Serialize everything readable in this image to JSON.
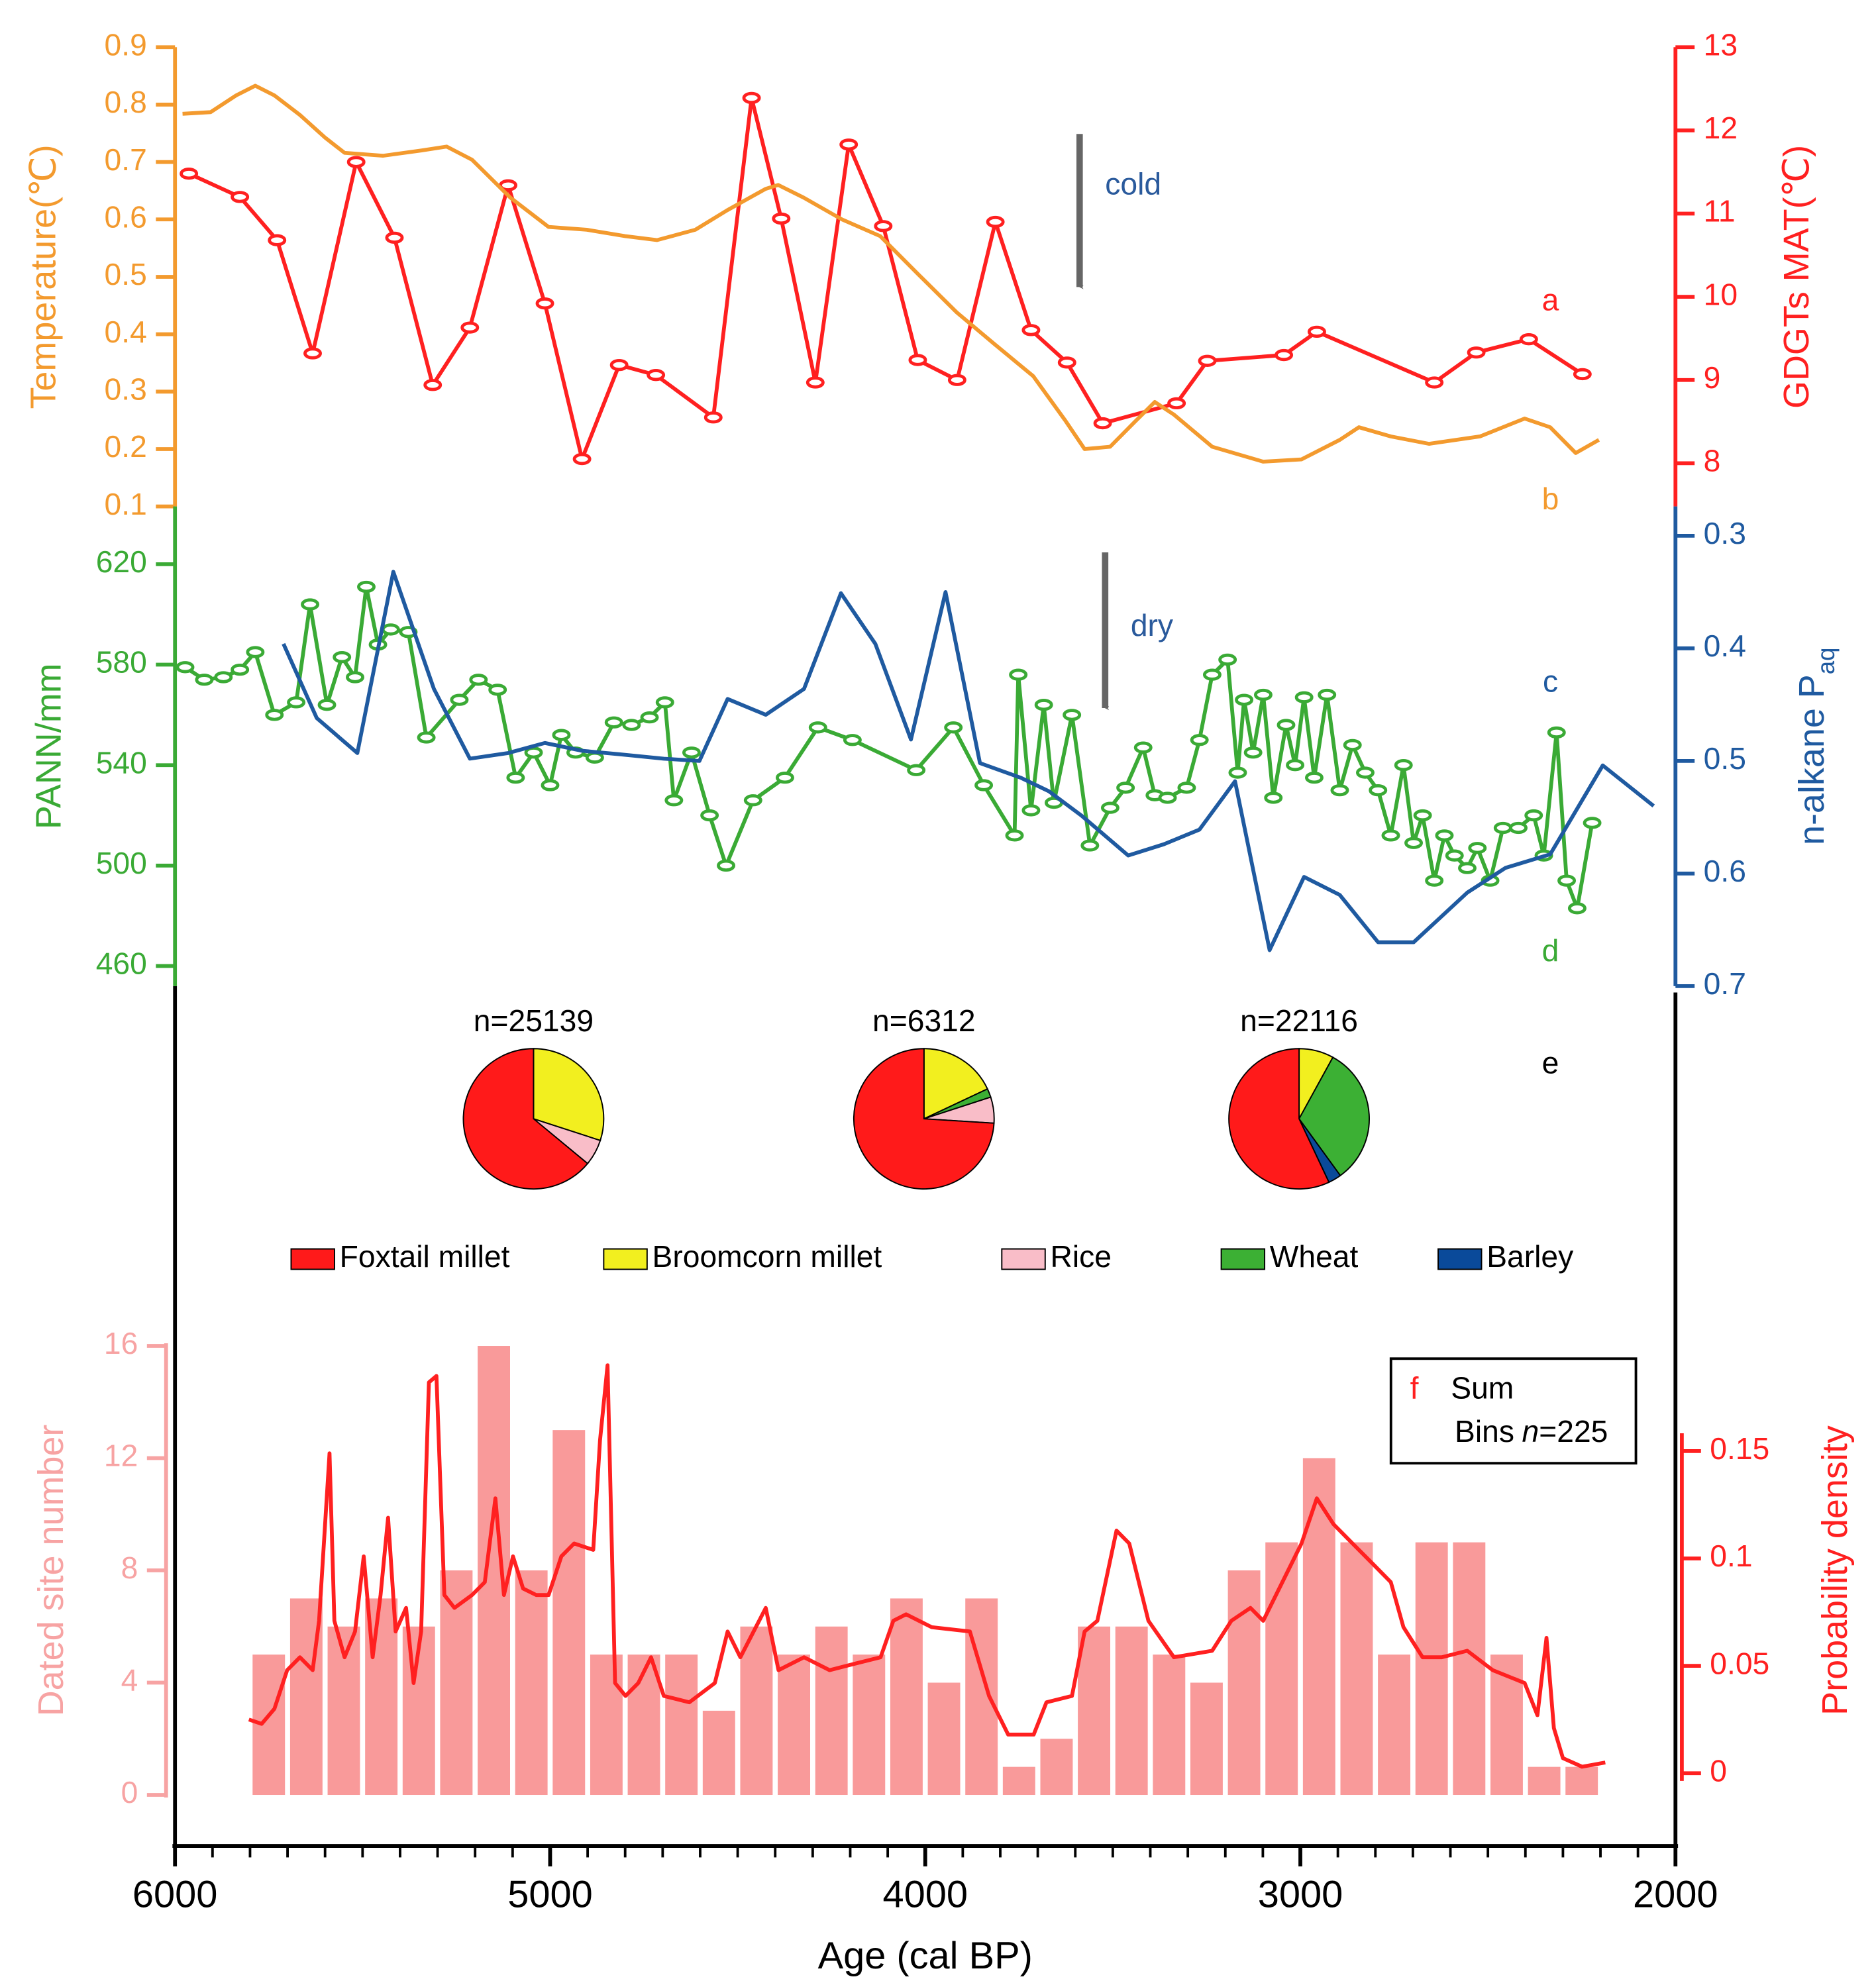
{
  "chart_data": [
    {
      "type": "line",
      "xlim": [
        6000,
        2000
      ],
      "ylabel": "Temperature(℃)",
      "ylim": [
        0.1,
        0.9
      ],
      "yticks": [
        0.1,
        0.2,
        0.3,
        0.4,
        0.5,
        0.6,
        0.7,
        0.8,
        0.9
      ],
      "ycolor": "#f39a2e",
      "y2label": "GDGTs MAT(℃)",
      "y2lim": [
        7.48,
        13
      ],
      "y2ticks": [
        8,
        9,
        10,
        11,
        12,
        13
      ],
      "y2color": "#ff2020",
      "annotation": "cold",
      "series": [
        {
          "label": "a",
          "color": "#ff2020",
          "axis": "y2",
          "markers": true,
          "x": [
            5963,
            5827,
            5728,
            5633,
            5517,
            5415,
            5313,
            5214,
            5112,
            5014,
            4915,
            4816,
            4718,
            4565,
            4463,
            4384,
            4293,
            4204,
            4112,
            4020,
            3915,
            3813,
            3718,
            3622,
            3527,
            3330,
            3248,
            3044,
            2956,
            2643,
            2531,
            2391,
            2248
          ],
          "values": [
            11.48,
            11.2,
            10.68,
            9.32,
            11.62,
            10.71,
            8.94,
            9.63,
            11.34,
            9.92,
            8.05,
            9.18,
            9.06,
            8.55,
            12.39,
            10.94,
            8.97,
            11.83,
            10.85,
            9.24,
            9.0,
            10.9,
            9.6,
            9.21,
            8.48,
            8.72,
            9.23,
            9.3,
            9.58,
            8.97,
            9.33,
            9.49,
            9.07
          ]
        },
        {
          "label": "b",
          "color": "#f39a2e",
          "axis": "y",
          "markers": false,
          "x": [
            5980,
            5905,
            5837,
            5786,
            5735,
            5667,
            5599,
            5548,
            5446,
            5344,
            5276,
            5208,
            5106,
            5004,
            4902,
            4800,
            4715,
            4613,
            4528,
            4426,
            4392,
            4324,
            4222,
            4120,
            4018,
            3916,
            3814,
            3712,
            3626,
            3575,
            3507,
            3439,
            3388,
            3337,
            3235,
            3099,
            2997,
            2895,
            2844,
            2759,
            2657,
            2521,
            2402,
            2334,
            2266,
            2204
          ],
          "values": [
            0.784,
            0.787,
            0.816,
            0.833,
            0.816,
            0.782,
            0.742,
            0.716,
            0.711,
            0.72,
            0.727,
            0.704,
            0.638,
            0.587,
            0.582,
            0.571,
            0.564,
            0.582,
            0.616,
            0.653,
            0.66,
            0.638,
            0.6,
            0.571,
            0.504,
            0.438,
            0.382,
            0.327,
            0.249,
            0.2,
            0.204,
            0.249,
            0.282,
            0.26,
            0.204,
            0.178,
            0.182,
            0.216,
            0.238,
            0.222,
            0.209,
            0.222,
            0.253,
            0.238,
            0.193,
            0.216
          ]
        }
      ]
    },
    {
      "type": "line",
      "xlim": [
        6000,
        2000
      ],
      "ylabel": "PANN/mm",
      "ylim": [
        452,
        643
      ],
      "yticks": [
        460,
        500,
        540,
        580,
        620
      ],
      "ycolor": "#3aaa35",
      "y2label": "n-alkane P",
      "y2label_sub": "aq",
      "y2lim": [
        0.7,
        0.274
      ],
      "y2ticks": [
        0.3,
        0.4,
        0.5,
        0.6,
        0.7
      ],
      "y2color": "#1f5aa0",
      "annotation": "dry",
      "series": [
        {
          "label": "d",
          "color": "#3aaa35",
          "axis": "y",
          "markers": true,
          "x": [
            5973,
            5922,
            5871,
            5827,
            5786,
            5735,
            5677,
            5640,
            5595,
            5555,
            5520,
            5490,
            5459,
            5425,
            5378,
            5330,
            5242,
            5191,
            5140,
            5092,
            5044,
            5000,
            4970,
            4932,
            4881,
            4830,
            4783,
            4735,
            4694,
            4670,
            4623,
            4575,
            4531,
            4459,
            4374,
            4286,
            4194,
            4024,
            3925,
            3844,
            3762,
            3752,
            3718,
            3684,
            3657,
            3609,
            3561,
            3507,
            3466,
            3419,
            3388,
            3354,
            3303,
            3269,
            3235,
            3194,
            3167,
            3150,
            3126,
            3099,
            3072,
            3038,
            3014,
            2990,
            2963,
            2929,
            2895,
            2861,
            2827,
            2793,
            2759,
            2725,
            2698,
            2674,
            2643,
            2616,
            2589,
            2555,
            2528,
            2494,
            2460,
            2419,
            2378,
            2351,
            2317,
            2290,
            2262,
            2222
          ],
          "values": [
            579,
            574,
            575,
            578,
            585,
            560,
            565,
            604,
            564,
            583,
            575,
            611,
            588,
            594,
            593,
            551,
            566,
            574,
            570,
            535,
            545,
            532,
            552,
            545,
            543,
            557,
            556,
            559,
            565,
            526,
            545,
            520,
            500,
            526,
            535,
            555,
            550,
            538,
            555,
            532,
            512,
            576,
            522,
            564,
            525,
            560,
            508,
            523,
            531,
            547,
            528,
            527,
            531,
            550,
            576,
            582,
            537,
            566,
            545,
            568,
            527,
            556,
            540,
            567,
            535,
            568,
            530,
            548,
            537,
            530,
            512,
            540,
            509,
            520,
            494,
            512,
            504,
            499,
            507,
            494,
            515,
            515,
            520,
            504,
            553,
            494,
            483,
            517
          ]
        },
        {
          "label": "c",
          "color": "#1f5aa0",
          "axis": "y2",
          "markers": false,
          "x": [
            5711,
            5622,
            5514,
            5418,
            5310,
            5214,
            5112,
            5014,
            4915,
            4816,
            4697,
            4602,
            4527,
            4425,
            4323,
            4225,
            4133,
            4038,
            3946,
            3854,
            3745,
            3670,
            3582,
            3459,
            3364,
            3269,
            3174,
            3082,
            2990,
            2895,
            2793,
            2698,
            2555,
            2453,
            2334,
            2194,
            2058
          ],
          "values": [
            0.396,
            0.462,
            0.493,
            0.332,
            0.436,
            0.498,
            0.493,
            0.484,
            0.491,
            0.494,
            0.498,
            0.5,
            0.445,
            0.459,
            0.436,
            0.351,
            0.396,
            0.481,
            0.35,
            0.502,
            0.515,
            0.527,
            0.549,
            0.584,
            0.574,
            0.561,
            0.518,
            0.668,
            0.603,
            0.619,
            0.661,
            0.661,
            0.617,
            0.595,
            0.583,
            0.504,
            0.54
          ]
        }
      ]
    },
    {
      "type": "pie",
      "label": "e",
      "categories": [
        "Foxtail millet",
        "Broomcorn millet",
        "Rice",
        "Wheat",
        "Barley"
      ],
      "colors": [
        "#ff1a1a",
        "#f2ef1f",
        "#f9bdc8",
        "#3cb034",
        "#0a4a9a"
      ],
      "pies": [
        {
          "label": "n=25139",
          "values": [
            64,
            30,
            6,
            0,
            0
          ]
        },
        {
          "label": "n=6312",
          "values": [
            74,
            18,
            6,
            2,
            0
          ]
        },
        {
          "label": "n=22116",
          "values": [
            57,
            8,
            0,
            32,
            3
          ]
        }
      ]
    },
    {
      "type": "histogram",
      "xlim": [
        6000,
        2000
      ],
      "xticks": [
        6000,
        5000,
        4000,
        3000,
        2000
      ],
      "xminorticks": [
        5900,
        5800,
        5700,
        5600,
        5500,
        5400,
        5300,
        5200,
        5100,
        4900,
        4800,
        4700,
        4600,
        4500,
        4400,
        4300,
        4200,
        4100,
        3900,
        3800,
        3700,
        3600,
        3500,
        3400,
        3300,
        3200,
        3100,
        2900,
        2800,
        2700,
        2600,
        2500,
        2400,
        2300,
        2200,
        2100
      ],
      "xlabel": "Age (cal BP)",
      "ylabel": "Dated site number",
      "ylim": [
        0,
        16
      ],
      "yticks": [
        0,
        4,
        8,
        12,
        16
      ],
      "ycolor": "#f7a3a3",
      "y2label": "Probability density",
      "y2lim": [
        -0.0101,
        0.199
      ],
      "y2ticks": [
        0,
        0.05,
        0.1,
        0.15
      ],
      "y2color": "#ff2020",
      "bar_color": "#f99a9a",
      "bins": [
        5800,
        5700,
        5600,
        5500,
        5400,
        5300,
        5200,
        5100,
        5000,
        4900,
        4800,
        4700,
        4600,
        4500,
        4400,
        4300,
        4200,
        4100,
        4000,
        3900,
        3800,
        3700,
        3600,
        3500,
        3400,
        3300,
        3200,
        3100,
        3000,
        2900,
        2800,
        2700,
        2600,
        2500,
        2400,
        2300,
        2200
      ],
      "counts": [
        5,
        7,
        6,
        7,
        6,
        8,
        16,
        8,
        13,
        5,
        5,
        5,
        3,
        6,
        5,
        6,
        5,
        7,
        4,
        7,
        1,
        2,
        6,
        6,
        5,
        4,
        8,
        9,
        12,
        9,
        5,
        9,
        9,
        5,
        1,
        1
      ],
      "panel_label": "f",
      "bins_note": [
        "Bins",
        "n",
        "=225"
      ],
      "series": [
        {
          "name": "Sum",
          "color": "#ff2020",
          "axis": "y2",
          "x": [
            5803,
            5769,
            5735,
            5701,
            5667,
            5633,
            5616,
            5588,
            5575,
            5548,
            5520,
            5497,
            5473,
            5452,
            5432,
            5412,
            5384,
            5364,
            5344,
            5323,
            5303,
            5282,
            5255,
            5208,
            5174,
            5146,
            5123,
            5099,
            5072,
            5037,
            5004,
            4970,
            4936,
            4885,
            4867,
            4847,
            4827,
            4799,
            4765,
            4731,
            4697,
            4629,
            4561,
            4527,
            4493,
            4425,
            4391,
            4323,
            4255,
            4187,
            4119,
            4085,
            4051,
            3983,
            3881,
            3830,
            3779,
            3711,
            3677,
            3609,
            3575,
            3541,
            3490,
            3456,
            3405,
            3337,
            3235,
            3184,
            3133,
            3099,
            3031,
            2997,
            2956,
            2912,
            2861,
            2810,
            2759,
            2725,
            2674,
            2623,
            2555,
            2487,
            2402,
            2368,
            2344,
            2324,
            2300,
            2249,
            2187
          ],
          "values": [
            0.025,
            0.023,
            0.03,
            0.048,
            0.054,
            0.048,
            0.071,
            0.149,
            0.071,
            0.054,
            0.066,
            0.101,
            0.054,
            0.083,
            0.119,
            0.066,
            0.077,
            0.042,
            0.066,
            0.182,
            0.185,
            0.083,
            0.077,
            0.083,
            0.089,
            0.128,
            0.083,
            0.101,
            0.086,
            0.083,
            0.083,
            0.101,
            0.107,
            0.104,
            0.155,
            0.19,
            0.042,
            0.036,
            0.042,
            0.054,
            0.036,
            0.033,
            0.042,
            0.066,
            0.054,
            0.077,
            0.048,
            0.054,
            0.048,
            0.051,
            0.054,
            0.071,
            0.074,
            0.068,
            0.066,
            0.036,
            0.018,
            0.018,
            0.033,
            0.036,
            0.066,
            0.071,
            0.113,
            0.107,
            0.071,
            0.054,
            0.057,
            0.071,
            0.077,
            0.071,
            0.095,
            0.107,
            0.128,
            0.116,
            0.107,
            0.098,
            0.089,
            0.068,
            0.054,
            0.054,
            0.057,
            0.048,
            0.042,
            0.027,
            0.063,
            0.021,
            0.007,
            0.003,
            0.005
          ]
        }
      ]
    }
  ]
}
